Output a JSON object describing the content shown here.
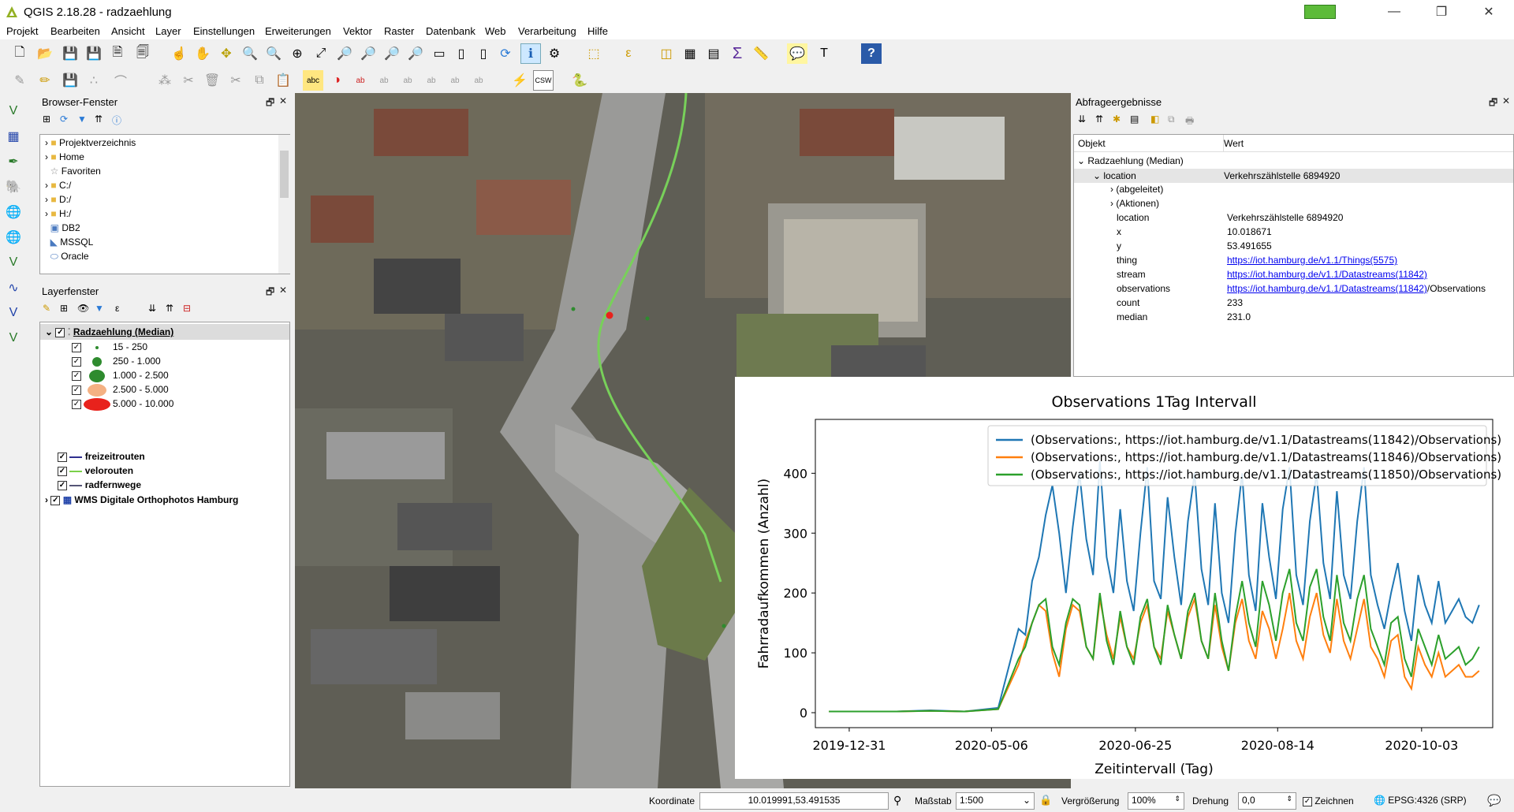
{
  "window": {
    "title": "QGIS 2.18.28 - radzaehlung",
    "minimize": "—",
    "maximize": "❐",
    "close": "✕"
  },
  "menu": [
    "Projekt",
    "Bearbeiten",
    "Ansicht",
    "Layer",
    "Einstellungen",
    "Erweiterungen",
    "Vektor",
    "Raster",
    "Datenbank",
    "Web",
    "Verarbeitung",
    "Hilfe"
  ],
  "browser": {
    "title": "Browser-Fenster",
    "items": [
      "Projektverzeichnis",
      "Home",
      "Favoriten",
      "C:/",
      "D:/",
      "H:/",
      "DB2",
      "MSSQL",
      "Oracle"
    ]
  },
  "layers": {
    "title": "Layerfenster",
    "main_layer": "Radzaehlung (Median)",
    "classes": [
      "15 - 250",
      "250 - 1.000",
      "1.000 - 2.500",
      "2.500 - 5.000",
      "5.000 - 10.000"
    ],
    "class_colors": [
      "#2e8b2e",
      "#2e8b2e",
      "#2e8b2e",
      "#f4b183",
      "#e8221c"
    ],
    "others": [
      "freizeitrouten",
      "velorouten",
      "radfernwege",
      "WMS Digitale Orthophotos Hamburg"
    ],
    "other_colors": [
      "#2f2f8f",
      "#7ad04a",
      "#555577",
      ""
    ]
  },
  "query": {
    "title": "Abfrageergebnisse",
    "col_object": "Objekt",
    "col_value": "Wert",
    "root": "Radzaehlung (Median)",
    "location_label": "location",
    "location_value": "Verkehrszählstelle 6894920",
    "derived": "(abgeleitet)",
    "actions": "(Aktionen)",
    "rows": [
      {
        "k": "location",
        "v": "Verkehrszählstelle 6894920"
      },
      {
        "k": "x",
        "v": "10.018671"
      },
      {
        "k": "y",
        "v": "53.491655"
      },
      {
        "k": "thing",
        "v": "https://iot.hamburg.de/v1.1/Things(5575)"
      },
      {
        "k": "stream",
        "v": "https://iot.hamburg.de/v1.1/Datastreams(11842)"
      },
      {
        "k": "observations",
        "v": "https://iot.hamburg.de/v1.1/Datastreams(11842)",
        "suffix": "/Observations"
      },
      {
        "k": "count",
        "v": "233"
      },
      {
        "k": "median",
        "v": "231.0"
      }
    ]
  },
  "chart_data": {
    "type": "line",
    "title": "Observations 1Tag Intervall",
    "xlabel": "Zeitintervall (Tag)",
    "ylabel": "Fahrradaufkommen (Anzahl)",
    "xticks": [
      "2019-12-31",
      "2020-05-06",
      "2020-06-25",
      "2020-08-14",
      "2020-10-03"
    ],
    "yticks": [
      0,
      100,
      200,
      300,
      400
    ],
    "ylim": [
      -25,
      490
    ],
    "legend_position": "top-right",
    "series": [
      {
        "name": "(Observations:, https://iot.hamburg.de/v1.1/Datastreams(11842)/Observations)",
        "color": "#1f77b4",
        "points": [
          [
            0,
            2
          ],
          [
            40,
            2
          ],
          [
            60,
            4
          ],
          [
            80,
            2
          ],
          [
            100,
            8
          ],
          [
            112,
            140
          ],
          [
            116,
            130
          ],
          [
            120,
            220
          ],
          [
            124,
            260
          ],
          [
            128,
            330
          ],
          [
            132,
            380
          ],
          [
            136,
            300
          ],
          [
            140,
            200
          ],
          [
            144,
            310
          ],
          [
            148,
            400
          ],
          [
            152,
            290
          ],
          [
            156,
            230
          ],
          [
            160,
            420
          ],
          [
            164,
            260
          ],
          [
            168,
            200
          ],
          [
            172,
            340
          ],
          [
            176,
            220
          ],
          [
            180,
            170
          ],
          [
            184,
            300
          ],
          [
            188,
            410
          ],
          [
            192,
            220
          ],
          [
            196,
            190
          ],
          [
            200,
            360
          ],
          [
            204,
            260
          ],
          [
            208,
            180
          ],
          [
            212,
            320
          ],
          [
            216,
            400
          ],
          [
            220,
            240
          ],
          [
            224,
            180
          ],
          [
            228,
            350
          ],
          [
            232,
            200
          ],
          [
            236,
            150
          ],
          [
            240,
            300
          ],
          [
            244,
            400
          ],
          [
            248,
            230
          ],
          [
            252,
            170
          ],
          [
            256,
            350
          ],
          [
            260,
            260
          ],
          [
            264,
            190
          ],
          [
            268,
            340
          ],
          [
            272,
            410
          ],
          [
            276,
            230
          ],
          [
            280,
            180
          ],
          [
            284,
            320
          ],
          [
            288,
            400
          ],
          [
            292,
            250
          ],
          [
            296,
            190
          ],
          [
            300,
            370
          ],
          [
            304,
            230
          ],
          [
            308,
            190
          ],
          [
            312,
            320
          ],
          [
            316,
            410
          ],
          [
            320,
            230
          ],
          [
            324,
            180
          ],
          [
            328,
            140
          ],
          [
            332,
            200
          ],
          [
            336,
            250
          ],
          [
            340,
            170
          ],
          [
            344,
            120
          ],
          [
            348,
            230
          ],
          [
            352,
            180
          ],
          [
            356,
            150
          ],
          [
            360,
            220
          ],
          [
            364,
            150
          ],
          [
            368,
            170
          ],
          [
            372,
            190
          ],
          [
            376,
            160
          ],
          [
            380,
            150
          ],
          [
            384,
            180
          ]
        ]
      },
      {
        "name": "(Observations:, https://iot.hamburg.de/v1.1/Datastreams(11846)/Observations)",
        "color": "#ff7f0e",
        "points": [
          [
            0,
            2
          ],
          [
            40,
            2
          ],
          [
            60,
            3
          ],
          [
            80,
            2
          ],
          [
            100,
            6
          ],
          [
            112,
            80
          ],
          [
            116,
            120
          ],
          [
            120,
            150
          ],
          [
            124,
            180
          ],
          [
            128,
            170
          ],
          [
            132,
            100
          ],
          [
            136,
            60
          ],
          [
            140,
            140
          ],
          [
            144,
            180
          ],
          [
            148,
            170
          ],
          [
            152,
            110
          ],
          [
            156,
            90
          ],
          [
            160,
            190
          ],
          [
            164,
            130
          ],
          [
            168,
            90
          ],
          [
            172,
            160
          ],
          [
            176,
            110
          ],
          [
            180,
            90
          ],
          [
            184,
            150
          ],
          [
            188,
            180
          ],
          [
            192,
            110
          ],
          [
            196,
            90
          ],
          [
            200,
            170
          ],
          [
            204,
            130
          ],
          [
            208,
            90
          ],
          [
            212,
            160
          ],
          [
            216,
            190
          ],
          [
            220,
            120
          ],
          [
            224,
            90
          ],
          [
            228,
            180
          ],
          [
            232,
            110
          ],
          [
            236,
            70
          ],
          [
            240,
            150
          ],
          [
            244,
            190
          ],
          [
            248,
            120
          ],
          [
            252,
            90
          ],
          [
            256,
            170
          ],
          [
            260,
            140
          ],
          [
            264,
            90
          ],
          [
            268,
            140
          ],
          [
            272,
            200
          ],
          [
            276,
            120
          ],
          [
            280,
            90
          ],
          [
            284,
            160
          ],
          [
            288,
            200
          ],
          [
            292,
            130
          ],
          [
            296,
            100
          ],
          [
            300,
            190
          ],
          [
            304,
            120
          ],
          [
            308,
            90
          ],
          [
            312,
            140
          ],
          [
            316,
            190
          ],
          [
            320,
            110
          ],
          [
            324,
            90
          ],
          [
            328,
            60
          ],
          [
            332,
            120
          ],
          [
            336,
            130
          ],
          [
            340,
            60
          ],
          [
            344,
            40
          ],
          [
            348,
            110
          ],
          [
            352,
            80
          ],
          [
            356,
            60
          ],
          [
            360,
            100
          ],
          [
            364,
            60
          ],
          [
            368,
            70
          ],
          [
            372,
            80
          ],
          [
            376,
            60
          ],
          [
            380,
            60
          ],
          [
            384,
            70
          ]
        ]
      },
      {
        "name": "(Observations:, https://iot.hamburg.de/v1.1/Datastreams(11850)/Observations)",
        "color": "#2ca02c",
        "points": [
          [
            0,
            2
          ],
          [
            40,
            2
          ],
          [
            60,
            3
          ],
          [
            80,
            2
          ],
          [
            100,
            6
          ],
          [
            112,
            90
          ],
          [
            116,
            110
          ],
          [
            120,
            150
          ],
          [
            124,
            180
          ],
          [
            128,
            190
          ],
          [
            132,
            110
          ],
          [
            136,
            80
          ],
          [
            140,
            150
          ],
          [
            144,
            190
          ],
          [
            148,
            180
          ],
          [
            152,
            110
          ],
          [
            156,
            90
          ],
          [
            160,
            200
          ],
          [
            164,
            120
          ],
          [
            168,
            80
          ],
          [
            172,
            170
          ],
          [
            176,
            110
          ],
          [
            180,
            80
          ],
          [
            184,
            160
          ],
          [
            188,
            190
          ],
          [
            192,
            110
          ],
          [
            196,
            80
          ],
          [
            200,
            180
          ],
          [
            204,
            130
          ],
          [
            208,
            90
          ],
          [
            212,
            170
          ],
          [
            216,
            200
          ],
          [
            220,
            120
          ],
          [
            224,
            90
          ],
          [
            228,
            200
          ],
          [
            232,
            120
          ],
          [
            236,
            70
          ],
          [
            240,
            160
          ],
          [
            244,
            220
          ],
          [
            248,
            150
          ],
          [
            252,
            110
          ],
          [
            256,
            220
          ],
          [
            260,
            180
          ],
          [
            264,
            120
          ],
          [
            268,
            200
          ],
          [
            272,
            240
          ],
          [
            276,
            150
          ],
          [
            280,
            120
          ],
          [
            284,
            210
          ],
          [
            288,
            240
          ],
          [
            292,
            160
          ],
          [
            296,
            120
          ],
          [
            300,
            230
          ],
          [
            304,
            150
          ],
          [
            308,
            120
          ],
          [
            312,
            190
          ],
          [
            316,
            230
          ],
          [
            320,
            140
          ],
          [
            324,
            110
          ],
          [
            328,
            80
          ],
          [
            332,
            150
          ],
          [
            336,
            160
          ],
          [
            340,
            90
          ],
          [
            344,
            60
          ],
          [
            348,
            140
          ],
          [
            352,
            110
          ],
          [
            356,
            80
          ],
          [
            360,
            130
          ],
          [
            364,
            90
          ],
          [
            368,
            100
          ],
          [
            372,
            110
          ],
          [
            376,
            80
          ],
          [
            380,
            90
          ],
          [
            384,
            110
          ]
        ]
      }
    ]
  },
  "status": {
    "coord_label": "Koordinate",
    "coord_value": "10.019991,53.491535",
    "scale_label": "Maßstab",
    "scale_value": "1:500",
    "zoom_label": "Vergrößerung",
    "zoom_value": "100%",
    "rotation_label": "Drehung",
    "rotation_value": "0,0",
    "render_label": "Zeichnen",
    "crs": "EPSG:4326 (SRP)"
  }
}
